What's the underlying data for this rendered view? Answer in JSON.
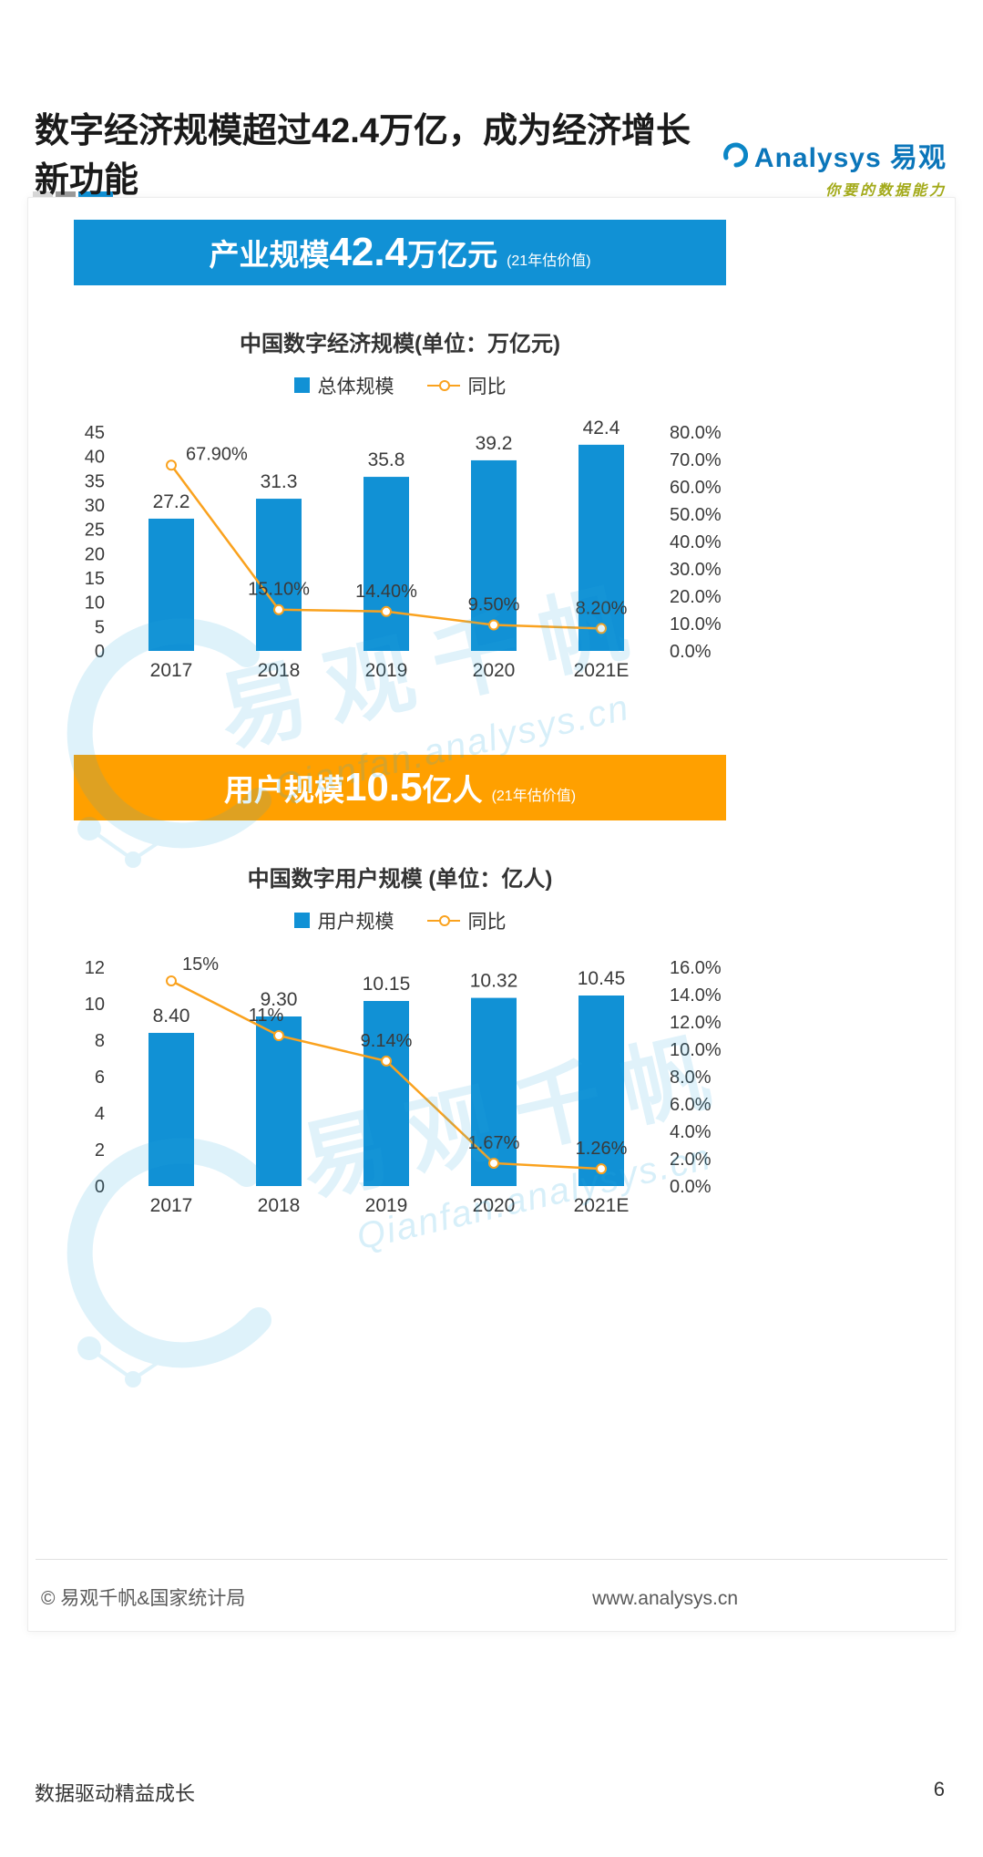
{
  "header": {
    "brand": "Analysys 易观",
    "tagline": "你要的数据能力"
  },
  "title": {
    "line1": "数字经济规模超过42.4万亿，成为经济增长",
    "line2": "新功能"
  },
  "banners": [
    {
      "prefix": "产业规模",
      "number": "42.4",
      "suffix": "万亿元",
      "note": "(21年估价值)",
      "color": "#1191d5"
    },
    {
      "prefix": "用户规模",
      "number": "10.5",
      "suffix": "亿人",
      "note": "(21年估价值)",
      "color": "#ffa000"
    }
  ],
  "chart_data": [
    {
      "type": "bar+line",
      "title": "中国数字经济规模(单位：万亿元)",
      "categories": [
        "2017",
        "2018",
        "2019",
        "2020",
        "2021E"
      ],
      "series": [
        {
          "name": "总体规模",
          "type": "bar",
          "axis": "left",
          "color": "#1191d5",
          "values": [
            27.2,
            31.3,
            35.8,
            39.2,
            42.4
          ],
          "labels": [
            "27.2",
            "31.3",
            "35.8",
            "39.2",
            "42.4"
          ]
        },
        {
          "name": "同比",
          "type": "line",
          "axis": "right",
          "color": "#faa21e",
          "values": [
            67.9,
            15.1,
            14.4,
            9.5,
            8.2
          ],
          "labels": [
            "67.90%",
            "15.10%",
            "14.40%",
            "9.50%",
            "8.20%"
          ],
          "label_offsets": [
            [
              16,
              -6
            ],
            [
              0,
              -16
            ],
            [
              0,
              -16
            ],
            [
              0,
              -16
            ],
            [
              0,
              -16
            ]
          ],
          "label_anchors": [
            "start",
            "middle",
            "middle",
            "middle",
            "middle"
          ]
        }
      ],
      "left_axis": {
        "min": 0,
        "max": 45,
        "step": 5,
        "labels": [
          "45",
          "40",
          "35",
          "30",
          "25",
          "20",
          "15",
          "10",
          "5",
          "0"
        ]
      },
      "right_axis": {
        "min": 0,
        "max": 80,
        "step": 10,
        "suffix": "%",
        "labels": [
          "80.0%",
          "70.0%",
          "60.0%",
          "50.0%",
          "40.0%",
          "30.0%",
          "20.0%",
          "10.0%",
          "0.0%"
        ]
      },
      "grid": false,
      "legend_position": "top"
    },
    {
      "type": "bar+line",
      "title": "中国数字用户规模 (单位：亿人)",
      "categories": [
        "2017",
        "2018",
        "2019",
        "2020",
        "2021E"
      ],
      "series": [
        {
          "name": "用户规模",
          "type": "bar",
          "axis": "left",
          "color": "#1191d5",
          "values": [
            8.4,
            9.3,
            10.15,
            10.32,
            10.45
          ],
          "labels": [
            "8.40",
            "9.30",
            "10.15",
            "10.32",
            "10.45"
          ]
        },
        {
          "name": "同比",
          "type": "line",
          "axis": "right",
          "color": "#faa21e",
          "values": [
            15,
            11,
            9.14,
            1.67,
            1.26
          ],
          "labels": [
            "15%",
            "11%",
            "9.14%",
            "1.67%",
            "1.26%"
          ],
          "label_offsets": [
            [
              12,
              -12
            ],
            [
              -14,
              -16
            ],
            [
              0,
              -16
            ],
            [
              0,
              -16
            ],
            [
              0,
              -16
            ]
          ],
          "label_anchors": [
            "start",
            "middle",
            "middle",
            "middle",
            "middle"
          ]
        }
      ],
      "left_axis": {
        "min": 0,
        "max": 12,
        "step": 2,
        "labels": [
          "12",
          "10",
          "8",
          "6",
          "4",
          "2",
          "0"
        ]
      },
      "right_axis": {
        "min": 0,
        "max": 16,
        "step": 2,
        "suffix": "%",
        "labels": [
          "16.0%",
          "14.0%",
          "12.0%",
          "10.0%",
          "8.0%",
          "6.0%",
          "4.0%",
          "2.0%",
          "0.0%"
        ]
      },
      "grid": false,
      "legend_position": "top"
    }
  ],
  "watermark": {
    "text": "易观千帆",
    "subtext": "Qianfan.analysys.cn"
  },
  "card_footer": {
    "source": "© 易观千帆&国家统计局",
    "website": "www.analysys.cn"
  },
  "page_footer": {
    "slogan": "数据驱动精益成长",
    "page_number": "6"
  },
  "colors": {
    "bar_blue": "#1191d5",
    "line_orange": "#faa21e",
    "banner_blue": "#1191d5",
    "banner_orange": "#ffa000",
    "brand_blue": "#0b76ba",
    "tagline_green": "#a3aa1a",
    "watermark_blue": "#29abe2",
    "title_text": "#1a1a1a"
  }
}
